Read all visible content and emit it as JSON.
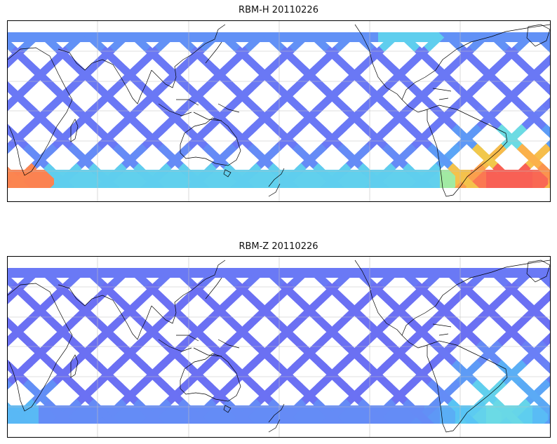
{
  "figure": {
    "panels": [
      {
        "title": "RBM-H 20110226",
        "swath_palette": [
          "#6b6bf2",
          "#6a80f6",
          "#5c9cf6",
          "#58c8f4",
          "#7ae8d8",
          "#e0ee50",
          "#fbb24a",
          "#fb7a52",
          "#f86055"
        ],
        "hotspots": "south-polar band and lower-right corner (orange/red)"
      },
      {
        "title": "RBM-Z 20110226",
        "swath_palette": [
          "#6b6bf2",
          "#6a80f6",
          "#5c9cf6",
          "#58c8f4",
          "#7ae8d8",
          "#a8f09a"
        ],
        "hotspots": "lower-right corner (light green)"
      }
    ],
    "colors": {
      "coast": "#000000",
      "grid": "#bfbfbf",
      "frame": "#000000",
      "background": "#ffffff"
    }
  }
}
